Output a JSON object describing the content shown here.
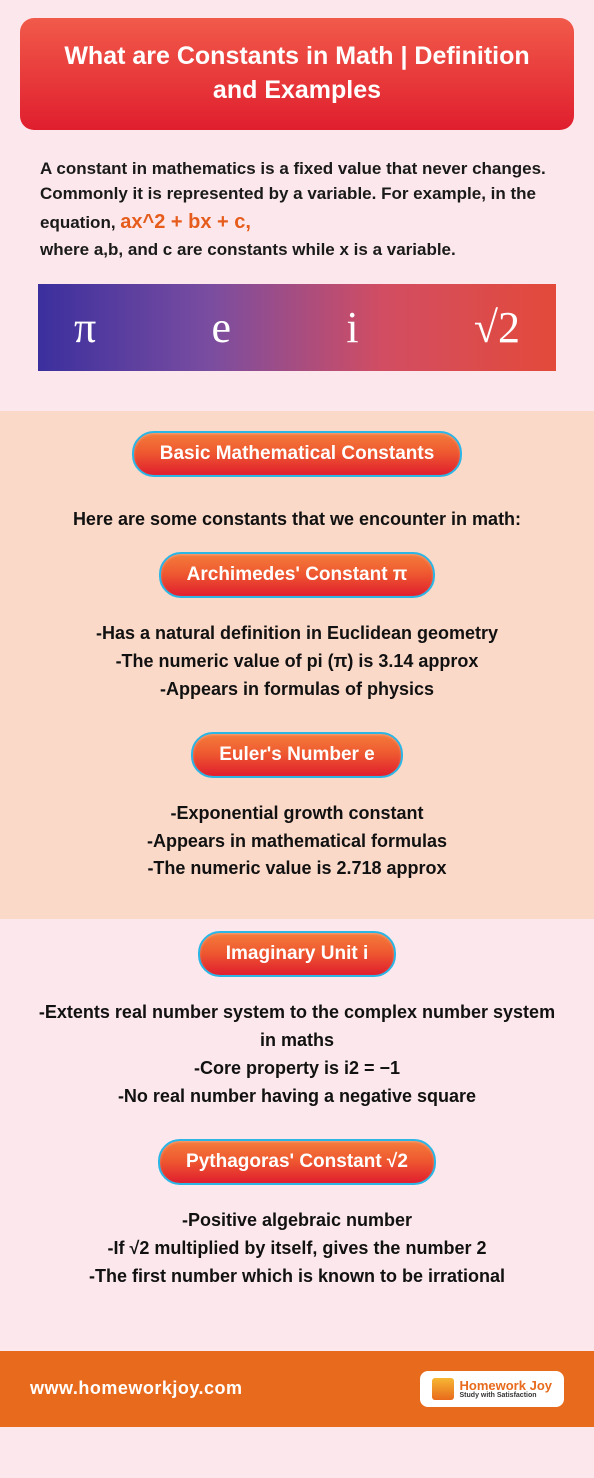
{
  "title": "What are Constants in Math | Definition and Examples",
  "intro": {
    "pre": "A constant in mathematics is a fixed value that never changes. Commonly it is represented by a variable. For example, in the equation, ",
    "equation": "ax^2 + bx + c,",
    "post": " where a,b, and c are constants while x is a variable."
  },
  "symbols": [
    "π",
    "e",
    "i",
    "√2"
  ],
  "sections": {
    "heading": "Basic Mathematical Constants",
    "subhead": "Here are some constants that we encounter in math:",
    "items": [
      {
        "title": "Archimedes' Constant π",
        "points": [
          "-Has a natural definition in Euclidean geometry",
          "-The numeric value of pi (π) is 3.14 approx",
          "-Appears in formulas of physics"
        ]
      },
      {
        "title": "Euler's Number e",
        "points": [
          "-Exponential growth constant",
          "-Appears in mathematical formulas",
          "-The numeric value is 2.718 approx"
        ]
      },
      {
        "title": "Imaginary Unit i",
        "points": [
          "-Extents real number system to the complex number system in maths",
          "-Core property is  i2 = −1",
          "-No real number having a negative square"
        ]
      },
      {
        "title": "Pythagoras' Constant √2",
        "points": [
          "-Positive algebraic number",
          "-If √2 multiplied by itself, gives the number 2",
          "-The first number which is known to be irrational"
        ]
      }
    ]
  },
  "footer": {
    "url": "www.homeworkjoy.com",
    "brand_main": "Homework Joy",
    "brand_sub": "Study with Satisfaction"
  },
  "style": {
    "title_banner_gradient": [
      "#f15a4a",
      "#e01e2e"
    ],
    "symbols_gradient": [
      "#3b2f9e",
      "#7a4da0",
      "#d24d62",
      "#e34a3a"
    ],
    "pill_gradient": [
      "#f47c3c",
      "#ef5a30",
      "#e01e2e"
    ],
    "pill_border": "#2bb6e6",
    "section_bg_a": "#fbd9c9",
    "section_bg_b": "#fce8ec",
    "footer_bg": "#e86a1c",
    "equation_color": "#e65c1c",
    "body_text_color": "#111111",
    "title_fontsize": 25,
    "symbol_fontsize": 44,
    "pill_fontsize": 19,
    "body_fontsize": 18
  }
}
